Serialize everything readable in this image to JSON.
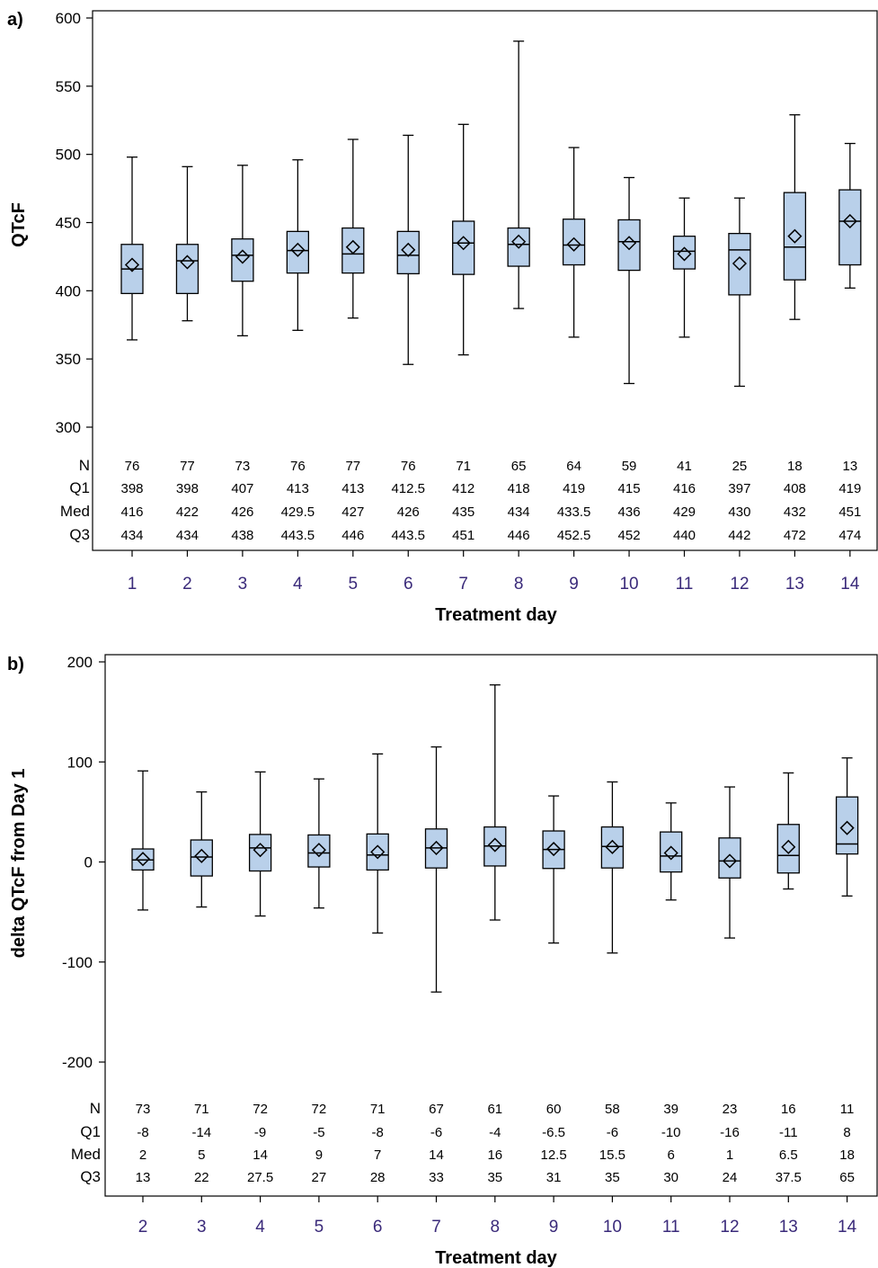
{
  "chart_data": [
    {
      "panel_label": "a)",
      "type": "box",
      "ylabel": "QTcF",
      "xlabel": "Treatment day",
      "ylim": [
        300,
        600
      ],
      "yticks": [
        300,
        350,
        400,
        450,
        500,
        550,
        600
      ],
      "categories": [
        "1",
        "2",
        "3",
        "4",
        "5",
        "6",
        "7",
        "8",
        "9",
        "10",
        "11",
        "12",
        "13",
        "14"
      ],
      "stat_labels": [
        "N",
        "Q1",
        "Med",
        "Q3"
      ],
      "stats": {
        "N": [
          "76",
          "77",
          "73",
          "76",
          "77",
          "76",
          "71",
          "65",
          "64",
          "59",
          "41",
          "25",
          "18",
          "13"
        ],
        "Q1": [
          "398",
          "398",
          "407",
          "413",
          "413",
          "412.5",
          "412",
          "418",
          "419",
          "415",
          "416",
          "397",
          "408",
          "419"
        ],
        "Med": [
          "416",
          "422",
          "426",
          "429.5",
          "427",
          "426",
          "435",
          "434",
          "433.5",
          "436",
          "429",
          "430",
          "432",
          "451"
        ],
        "Q3": [
          "434",
          "434",
          "438",
          "443.5",
          "446",
          "443.5",
          "451",
          "446",
          "452.5",
          "452",
          "440",
          "442",
          "472",
          "474"
        ]
      },
      "whisker_low": [
        364,
        378,
        367,
        371,
        380,
        346,
        353,
        387,
        366,
        332,
        366,
        330,
        379,
        402
      ],
      "whisker_high": [
        498,
        491,
        492,
        496,
        511,
        514,
        522,
        583,
        505,
        483,
        468,
        468,
        529,
        508
      ],
      "means": [
        419,
        421,
        425,
        430,
        432,
        430,
        435,
        436,
        434,
        435,
        427,
        420,
        440,
        451
      ],
      "box_color": "#b9d0ea",
      "box_stroke": "#000000"
    },
    {
      "panel_label": "b)",
      "type": "box",
      "ylabel": "delta QTcF from Day 1",
      "xlabel": "Treatment day",
      "ylim": [
        -200,
        200
      ],
      "yticks": [
        -200,
        -100,
        0,
        100,
        200
      ],
      "categories": [
        "2",
        "3",
        "4",
        "5",
        "6",
        "7",
        "8",
        "9",
        "10",
        "11",
        "12",
        "13",
        "14"
      ],
      "stat_labels": [
        "N",
        "Q1",
        "Med",
        "Q3"
      ],
      "stats": {
        "N": [
          "73",
          "71",
          "72",
          "72",
          "71",
          "67",
          "61",
          "60",
          "58",
          "39",
          "23",
          "16",
          "11"
        ],
        "Q1": [
          "-8",
          "-14",
          "-9",
          "-5",
          "-8",
          "-6",
          "-4",
          "-6.5",
          "-6",
          "-10",
          "-16",
          "-11",
          "8"
        ],
        "Med": [
          "2",
          "5",
          "14",
          "9",
          "7",
          "14",
          "16",
          "12.5",
          "15.5",
          "6",
          "1",
          "6.5",
          "18"
        ],
        "Q3": [
          "13",
          "22",
          "27.5",
          "27",
          "28",
          "33",
          "35",
          "31",
          "35",
          "30",
          "24",
          "37.5",
          "65"
        ]
      },
      "whisker_low": [
        -48,
        -45,
        -54,
        -46,
        -71,
        -130,
        -58,
        -81,
        -91,
        -38,
        -76,
        -27,
        -34
      ],
      "whisker_high": [
        91,
        70,
        90,
        83,
        108,
        115,
        177,
        66,
        80,
        59,
        75,
        89,
        104
      ],
      "means": [
        3,
        6,
        12,
        12,
        10,
        14,
        17,
        13,
        15,
        9,
        1,
        15,
        34
      ],
      "box_color": "#b9d0ea",
      "box_stroke": "#000000"
    }
  ]
}
